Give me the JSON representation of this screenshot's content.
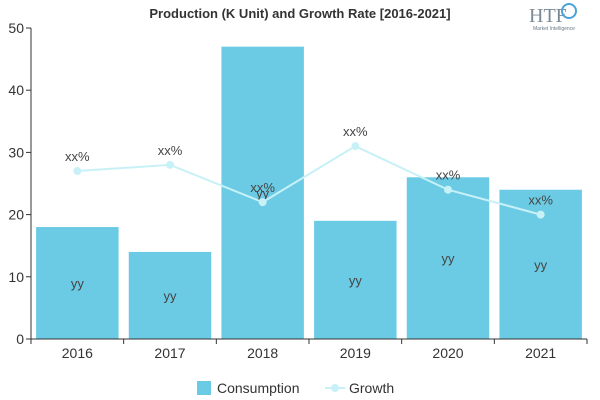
{
  "chart_data": {
    "type": "bar",
    "title": "Production (K Unit) and Growth Rate [2016-2021]",
    "categories": [
      "2016",
      "2017",
      "2018",
      "2019",
      "2020",
      "2021"
    ],
    "series": [
      {
        "name": "Consumption",
        "type": "bar",
        "values": [
          18,
          14,
          47,
          19,
          26,
          24
        ],
        "labels": [
          "yy",
          "yy",
          "yy",
          "yy",
          "yy",
          "yy"
        ]
      },
      {
        "name": "Growth",
        "type": "line",
        "values": [
          27,
          28,
          22,
          31,
          24,
          20
        ],
        "labels": [
          "xx%",
          "xx%",
          "xx%",
          "xx%",
          "xx%",
          "xx%"
        ]
      }
    ],
    "ylim": [
      0,
      50
    ],
    "yticks": [
      0,
      10,
      20,
      30,
      40,
      50
    ],
    "xlabel": "",
    "ylabel": "",
    "grid": false,
    "legend_position": "bottom",
    "colors": {
      "bar": "#6ccbe4",
      "line": "#c7f1f7",
      "axis": "#333333"
    }
  },
  "logo": {
    "text": "HTF",
    "subtitle": "Market Intelligence"
  }
}
